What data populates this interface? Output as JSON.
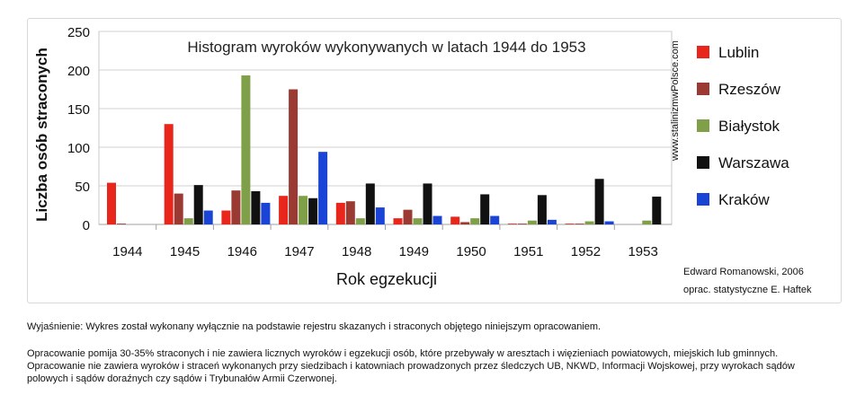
{
  "chart_data": {
    "type": "bar",
    "title": "Histogram wyroków wykonywanych w latach 1944 do 1953",
    "xlabel": "Rok egzekucji",
    "ylabel": "Liczba osób straconych",
    "ylim": [
      0,
      250
    ],
    "yticks": [
      0,
      50,
      100,
      150,
      200,
      250
    ],
    "grid": true,
    "legend_position": "right",
    "categories": [
      "1944",
      "1945",
      "1946",
      "1947",
      "1948",
      "1949",
      "1950",
      "1951",
      "1952",
      "1953"
    ],
    "series": [
      {
        "name": "Lublin",
        "color": "#e8261c",
        "values": [
          54,
          130,
          18,
          37,
          28,
          8,
          10,
          1,
          1,
          0
        ]
      },
      {
        "name": "Rzeszów",
        "color": "#9a3a33",
        "values": [
          1,
          40,
          44,
          175,
          30,
          19,
          3,
          1,
          1,
          0
        ]
      },
      {
        "name": "Białystok",
        "color": "#7fa048",
        "values": [
          0,
          8,
          193,
          37,
          8,
          8,
          8,
          5,
          4,
          5
        ]
      },
      {
        "name": "Warszawa",
        "color": "#111111",
        "values": [
          0,
          51,
          43,
          34,
          53,
          53,
          39,
          38,
          59,
          36
        ]
      },
      {
        "name": "Kraków",
        "color": "#1a44d6",
        "values": [
          0,
          18,
          28,
          94,
          22,
          11,
          11,
          6,
          4,
          0
        ]
      }
    ]
  },
  "watermark": "www.stalinizmwPolsce.com",
  "credit_author": "Edward Romanowski,  2006",
  "credit_stats": "oprac. statystyczne  E. Haftek",
  "note_explanation": "Wyjaśnienie:  Wykres został  wykonany wyłącznie  na  podstawie rejestru  skazanych i  straconych  objętego niniejszym  opracowaniem.",
  "note_details": "Opracowanie pomija 30-35% straconych i nie zawiera licznych  wyroków i egzekucji osób, które przebywały w aresztach i więzieniach powiatowych, miejskich lub gminnych. Opracowanie nie zawiera wyroków i straceń wykonanych przy siedzibach i katowniach prowadzonych przez śledczych UB, NKWD, Informacji Wojskowej, przy wyrokach sądów polowych i sądów doraźnych czy sądów i Trybunałów Armii Czerwonej."
}
